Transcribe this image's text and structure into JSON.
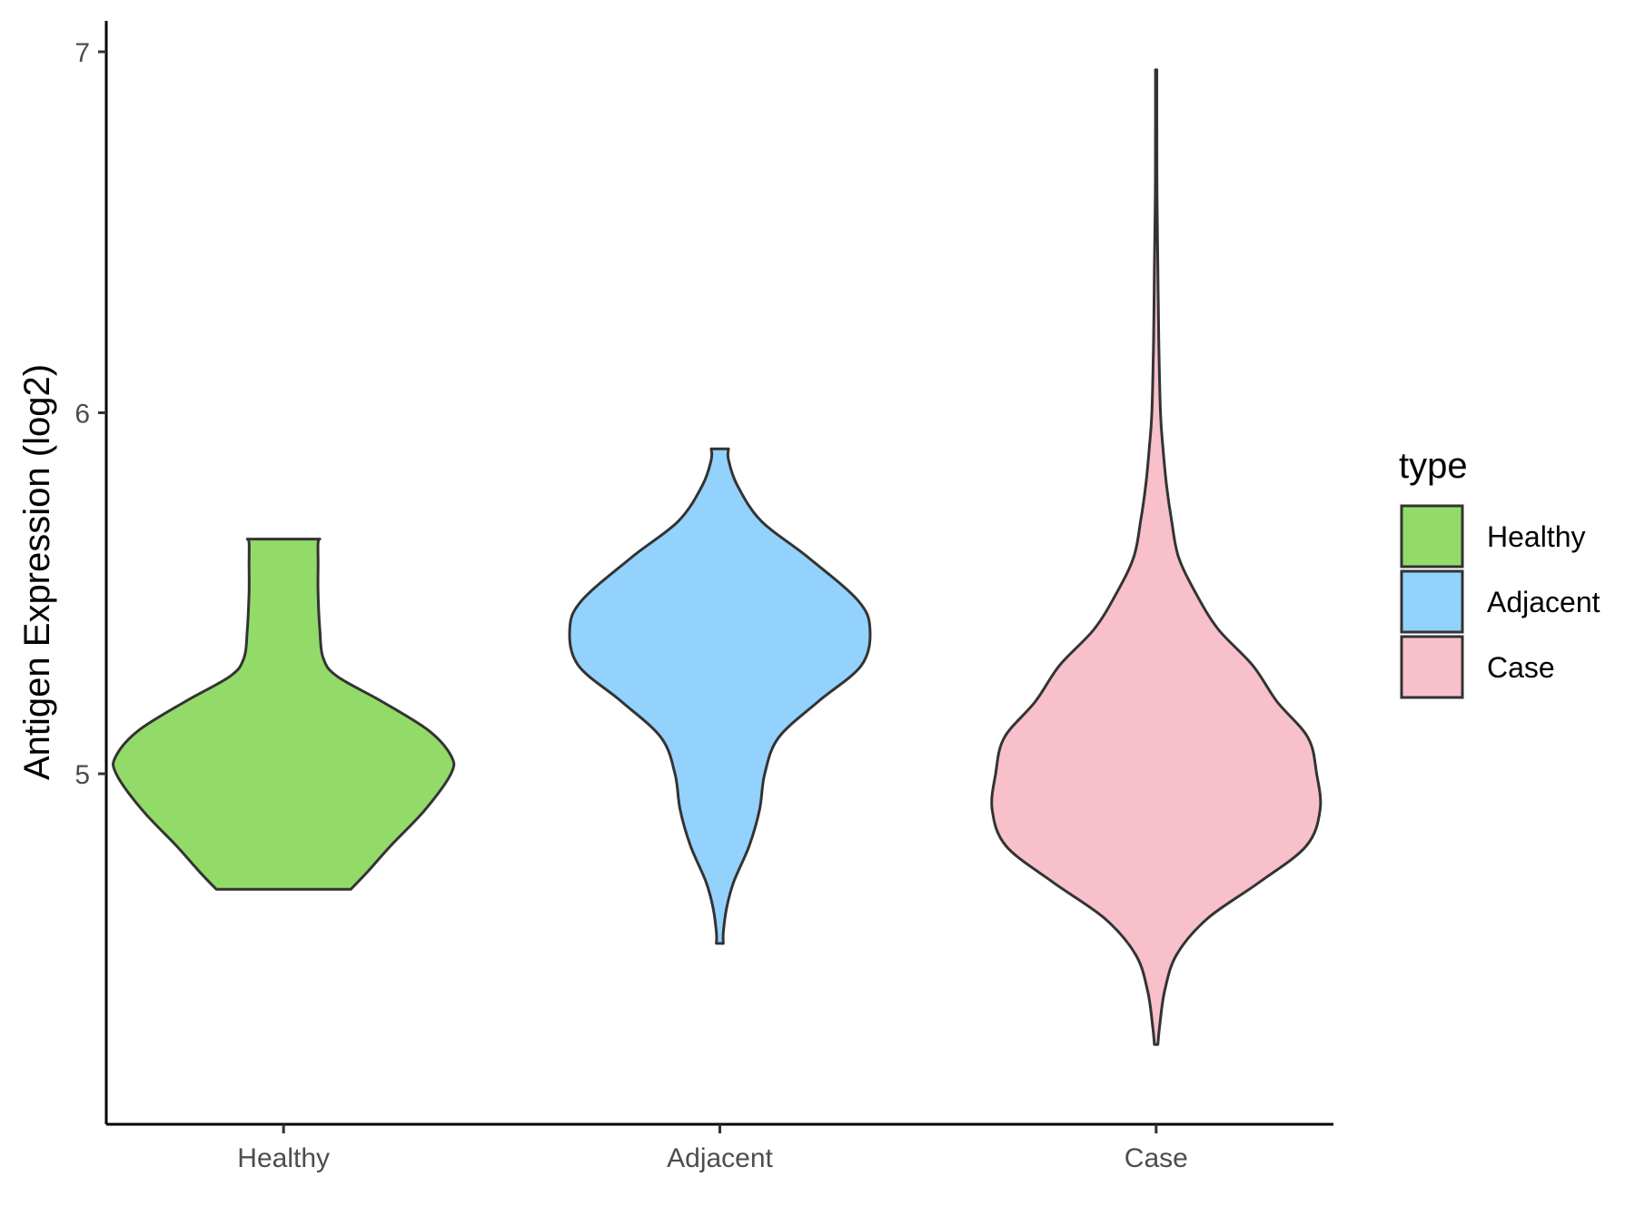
{
  "chart_data": {
    "type": "violin",
    "title": "",
    "xlabel": "",
    "ylabel": "Antigen Expression (log2)",
    "ylim": [
      4.04,
      7.1
    ],
    "yticks": [
      5,
      6,
      7
    ],
    "categories": [
      "Healthy",
      "Adjacent",
      "Case"
    ],
    "legend": {
      "title": "type",
      "position": "right",
      "entries": [
        "Healthy",
        "Adjacent",
        "Case"
      ]
    },
    "grid": false,
    "colors": {
      "Healthy": "#93db69",
      "Adjacent": "#93d2fc",
      "Case": "#f7c0cb",
      "outline": "#333333"
    },
    "series": [
      {
        "category": "Healthy",
        "fill": "#93db69",
        "density": [
          [
            4.68,
            0.39
          ],
          [
            4.73,
            0.49
          ],
          [
            4.8,
            0.62
          ],
          [
            4.9,
            0.82
          ],
          [
            5.0,
            0.97
          ],
          [
            5.05,
            0.97
          ],
          [
            5.12,
            0.84
          ],
          [
            5.2,
            0.57
          ],
          [
            5.27,
            0.31
          ],
          [
            5.32,
            0.23
          ],
          [
            5.4,
            0.21
          ],
          [
            5.5,
            0.2
          ],
          [
            5.58,
            0.2
          ],
          [
            5.64,
            0.2
          ],
          [
            5.65,
            0.21
          ]
        ]
      },
      {
        "category": "Adjacent",
        "fill": "#93d2fc",
        "density": [
          [
            4.53,
            0.02
          ],
          [
            4.56,
            0.02
          ],
          [
            4.63,
            0.04
          ],
          [
            4.7,
            0.08
          ],
          [
            4.8,
            0.17
          ],
          [
            4.9,
            0.23
          ],
          [
            5.0,
            0.26
          ],
          [
            5.1,
            0.34
          ],
          [
            5.2,
            0.57
          ],
          [
            5.3,
            0.82
          ],
          [
            5.4,
            0.87
          ],
          [
            5.48,
            0.8
          ],
          [
            5.6,
            0.51
          ],
          [
            5.7,
            0.24
          ],
          [
            5.8,
            0.1
          ],
          [
            5.87,
            0.05
          ],
          [
            5.9,
            0.05
          ]
        ]
      },
      {
        "category": "Case",
        "fill": "#f7c0cb",
        "density": [
          [
            4.25,
            0.01
          ],
          [
            4.3,
            0.02
          ],
          [
            4.4,
            0.05
          ],
          [
            4.5,
            0.12
          ],
          [
            4.6,
            0.3
          ],
          [
            4.7,
            0.6
          ],
          [
            4.8,
            0.87
          ],
          [
            4.9,
            0.95
          ],
          [
            5.0,
            0.93
          ],
          [
            5.1,
            0.88
          ],
          [
            5.2,
            0.7
          ],
          [
            5.3,
            0.56
          ],
          [
            5.4,
            0.36
          ],
          [
            5.5,
            0.23
          ],
          [
            5.6,
            0.13
          ],
          [
            5.7,
            0.09
          ],
          [
            5.8,
            0.06
          ],
          [
            5.9,
            0.04
          ],
          [
            6.0,
            0.025
          ],
          [
            6.2,
            0.015
          ],
          [
            6.4,
            0.01
          ],
          [
            6.6,
            0.005
          ],
          [
            6.8,
            0.004
          ],
          [
            6.95,
            0.004
          ]
        ]
      }
    ]
  }
}
